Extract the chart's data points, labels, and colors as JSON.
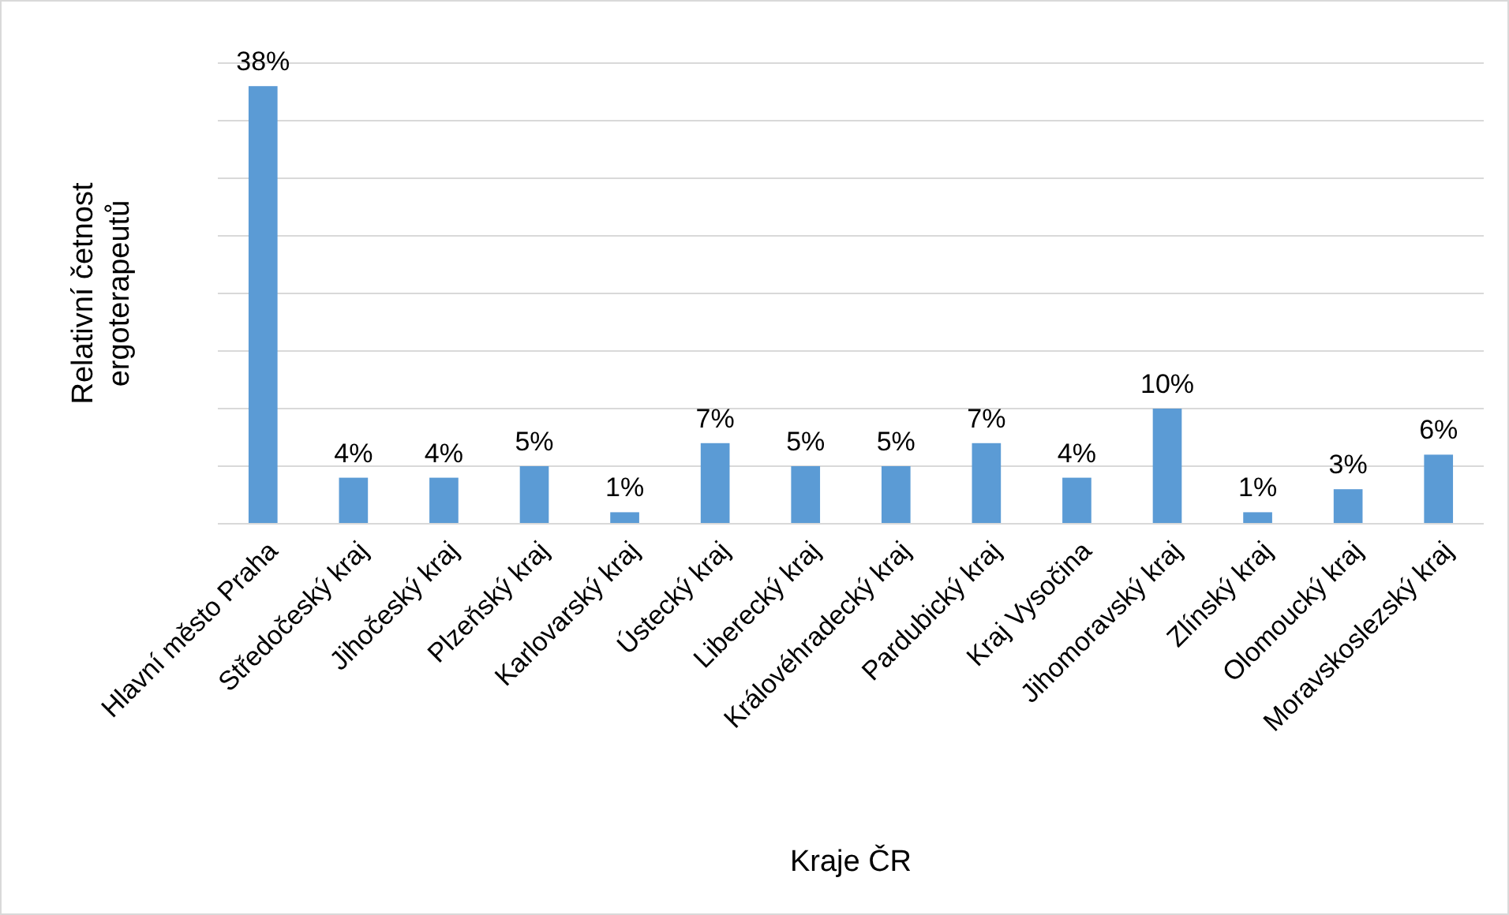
{
  "chart_data": {
    "type": "bar",
    "xlabel": "Kraje ČR",
    "ylabel": "Relativní četnost ergoterapeutů",
    "categories": [
      "Hlavní město Praha",
      "Středočeský kraj",
      "Jihočeský kraj",
      "Plzeňský kraj",
      "Karlovarský kraj",
      "Ústecký kraj",
      "Liberecký kraj",
      "Královéhradecký kraj",
      "Pardubický kraj",
      "Kraj Vysočina",
      "Jihomoravský kraj",
      "Zlínský kraj",
      "Olomoucký kraj",
      "Moravskoslezský kraj"
    ],
    "values": [
      38,
      4,
      4,
      5,
      1,
      7,
      5,
      5,
      7,
      4,
      10,
      1,
      3,
      6
    ],
    "value_labels": [
      "38%",
      "4%",
      "4%",
      "5%",
      "1%",
      "7%",
      "5%",
      "5%",
      "7%",
      "4%",
      "10%",
      "1%",
      "3%",
      "6%"
    ],
    "color": "#5b9bd5",
    "ylim": [
      0,
      40
    ],
    "yticks": [
      {
        "value": 0,
        "label": null
      },
      {
        "value": 5,
        "label": null
      },
      {
        "value": 10,
        "label": null
      },
      {
        "value": 15,
        "label": null
      },
      {
        "value": 20,
        "label": null
      },
      {
        "value": 25,
        "label": null
      },
      {
        "value": 30,
        "label": null
      },
      {
        "value": 35,
        "label": null
      },
      {
        "value": 40,
        "label": null
      }
    ],
    "grid": "y",
    "tick_labels": "x"
  }
}
